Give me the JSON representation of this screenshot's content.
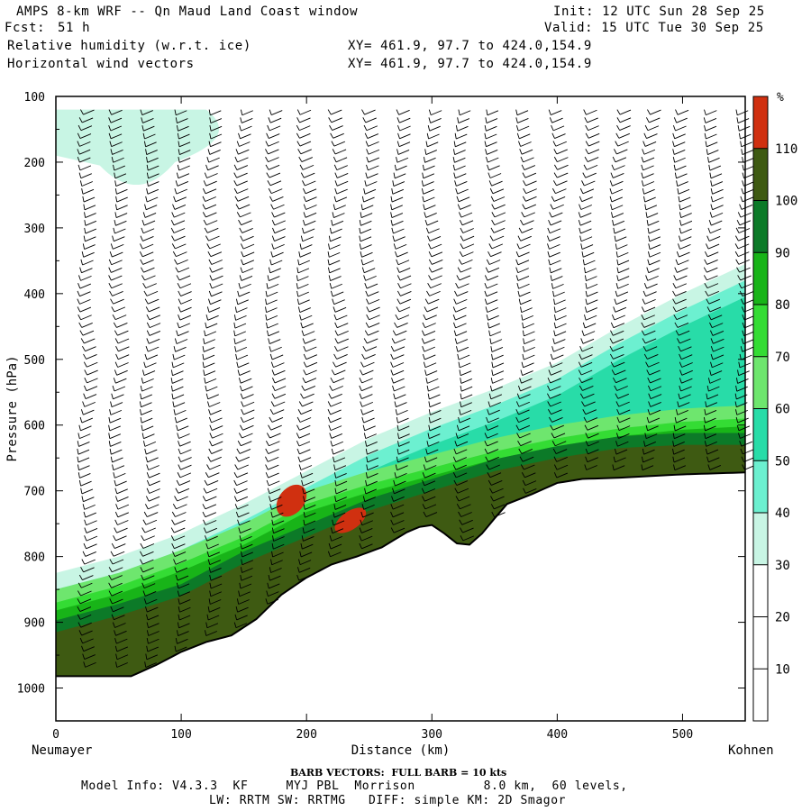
{
  "header": {
    "title": "AMPS 8-km WRF -- Qn Maud Land Coast window",
    "fcst_label": "Fcst:",
    "fcst_value": "51 h",
    "init": "Init: 12 UTC Sun 28 Sep 25",
    "valid": "Valid: 15 UTC Tue 30 Sep 25",
    "field1": "Relative humidity (w.r.t. ice)",
    "field2": "Horizontal wind vectors",
    "xy1": "XY= 461.9, 97.7 to 424.0,154.9",
    "xy2": "XY= 461.9, 97.7 to 424.0,154.9"
  },
  "footer": {
    "barb_note": "BARB VECTORS:  FULL BARB = 10 kts",
    "model_info": "Model Info: V4.3.3  KF     MYJ PBL  Morrison         8.0 km,  60 levels,",
    "physics": "LW: RRTM SW: RRTMG   DIFF: simple KM: 2D Smagor"
  },
  "chart_data": {
    "type": "heatmap",
    "title": "Relative humidity (w.r.t. ice) cross-section with horizontal wind barbs",
    "xlabel": "Distance (km)",
    "ylabel": "Pressure (hPa)",
    "xlim": [
      0,
      550
    ],
    "ylim": [
      1050,
      100
    ],
    "x_ticks": [
      0,
      100,
      200,
      300,
      400,
      500
    ],
    "y_ticks": [
      100,
      200,
      300,
      400,
      500,
      600,
      700,
      800,
      900,
      1000
    ],
    "x_end_labels": {
      "left": "Neumayer",
      "right": "Kohnen"
    },
    "colorbar": {
      "unit": "%",
      "levels": [
        10,
        20,
        30,
        40,
        50,
        60,
        70,
        80,
        90,
        100,
        110
      ],
      "colors": [
        "#ffffff",
        "#ffffff",
        "#ffffff",
        "#c8f5e4",
        "#6cf0d0",
        "#28dca8",
        "#6ee66e",
        "#34dc34",
        "#18b418",
        "#0c7a28",
        "#3e5a12",
        "#d03010"
      ]
    },
    "terrain": {
      "distance_km": [
        0,
        20,
        40,
        60,
        80,
        100,
        120,
        140,
        160,
        180,
        200,
        220,
        240,
        260,
        280,
        290,
        300,
        310,
        320,
        330,
        340,
        350,
        360,
        380,
        400,
        420,
        450,
        500,
        550
      ],
      "surface_pressure_hPa": [
        982,
        982,
        982,
        982,
        965,
        945,
        930,
        920,
        895,
        858,
        832,
        812,
        800,
        786,
        763,
        755,
        752,
        765,
        780,
        782,
        765,
        742,
        720,
        705,
        688,
        682,
        680,
        675,
        672
      ]
    },
    "humid_layer_top_hPa": {
      "distance_km": [
        0,
        50,
        100,
        150,
        200,
        250,
        300,
        350,
        400,
        450,
        500,
        550
      ],
      "rh30_top": [
        825,
        800,
        765,
        720,
        670,
        620,
        580,
        545,
        505,
        450,
        400,
        355
      ],
      "rh80_top": [
        870,
        845,
        810,
        770,
        720,
        690,
        665,
        640,
        620,
        605,
        595,
        590
      ],
      "rh100_top": [
        905,
        880,
        850,
        800,
        760,
        720,
        690,
        660,
        640,
        625,
        620,
        620
      ]
    },
    "wind_barb_columns_km": [
      20,
      45,
      70,
      95,
      120,
      145,
      170,
      195,
      220,
      245,
      270,
      295,
      320,
      345,
      370,
      395,
      420,
      445,
      470,
      495,
      520,
      545
    ]
  }
}
